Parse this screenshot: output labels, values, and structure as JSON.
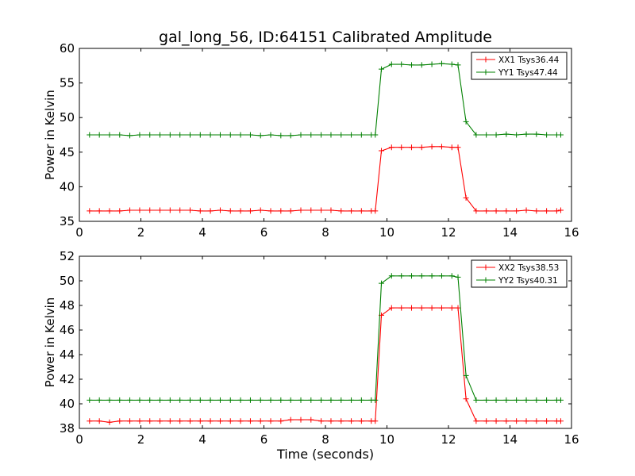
{
  "title": "gal_long_56, ID:64151 Calibrated Amplitude",
  "xlabel": "Time (seconds)",
  "colors": {
    "xx": "#ff0000",
    "yy": "#008000"
  },
  "chart_data": [
    {
      "type": "line",
      "title": "gal_long_56, ID:64151 Calibrated Amplitude",
      "xlabel": "",
      "ylabel": "Power in Kelvin",
      "xlim": [
        0,
        16
      ],
      "ylim": [
        35,
        60
      ],
      "xticks": [
        "0",
        "2",
        "4",
        "6",
        "8",
        "10",
        "12",
        "14",
        "16"
      ],
      "yticks": [
        "35",
        "40",
        "45",
        "50",
        "55",
        "60"
      ],
      "grid": false,
      "legend_position": "top-right",
      "x": [
        0.33,
        0.65,
        0.98,
        1.31,
        1.64,
        1.96,
        2.29,
        2.62,
        2.95,
        3.27,
        3.6,
        3.93,
        4.26,
        4.58,
        4.91,
        5.24,
        5.56,
        5.89,
        6.22,
        6.55,
        6.87,
        7.2,
        7.53,
        7.86,
        8.18,
        8.51,
        8.84,
        9.17,
        9.49,
        9.62,
        9.82,
        10.15,
        10.47,
        10.8,
        11.13,
        11.46,
        11.78,
        12.11,
        12.31,
        12.57,
        12.9,
        13.23,
        13.55,
        13.88,
        14.21,
        14.53,
        14.86,
        15.19,
        15.52,
        15.65
      ],
      "series": [
        {
          "name": "XX1 Tsys36.44",
          "color": "#ff0000",
          "values": [
            36.5,
            36.5,
            36.5,
            36.5,
            36.6,
            36.6,
            36.6,
            36.6,
            36.6,
            36.6,
            36.6,
            36.5,
            36.5,
            36.6,
            36.5,
            36.5,
            36.5,
            36.6,
            36.5,
            36.5,
            36.5,
            36.6,
            36.6,
            36.6,
            36.6,
            36.5,
            36.5,
            36.5,
            36.5,
            36.5,
            45.2,
            45.7,
            45.7,
            45.7,
            45.7,
            45.8,
            45.8,
            45.7,
            45.7,
            38.4,
            36.5,
            36.5,
            36.5,
            36.5,
            36.5,
            36.6,
            36.5,
            36.5,
            36.5,
            36.6
          ]
        },
        {
          "name": "YY1 Tsys47.44",
          "color": "#008000",
          "values": [
            47.5,
            47.5,
            47.5,
            47.5,
            47.4,
            47.5,
            47.5,
            47.5,
            47.5,
            47.5,
            47.5,
            47.5,
            47.5,
            47.5,
            47.5,
            47.5,
            47.5,
            47.4,
            47.5,
            47.4,
            47.4,
            47.5,
            47.5,
            47.5,
            47.5,
            47.5,
            47.5,
            47.5,
            47.5,
            47.5,
            57.0,
            57.7,
            57.7,
            57.6,
            57.6,
            57.7,
            57.8,
            57.7,
            57.6,
            49.4,
            47.5,
            47.5,
            47.5,
            47.6,
            47.5,
            47.6,
            47.6,
            47.5,
            47.5,
            47.5
          ]
        }
      ]
    },
    {
      "type": "line",
      "title": "",
      "xlabel": "Time (seconds)",
      "ylabel": "Power in Kelvin",
      "xlim": [
        0,
        16
      ],
      "ylim": [
        38,
        52
      ],
      "xticks": [
        "0",
        "2",
        "4",
        "6",
        "8",
        "10",
        "12",
        "14",
        "16"
      ],
      "yticks": [
        "38",
        "40",
        "42",
        "44",
        "46",
        "48",
        "50",
        "52"
      ],
      "grid": false,
      "legend_position": "top-right",
      "x": [
        0.33,
        0.65,
        0.98,
        1.31,
        1.64,
        1.96,
        2.29,
        2.62,
        2.95,
        3.27,
        3.6,
        3.93,
        4.26,
        4.58,
        4.91,
        5.24,
        5.56,
        5.89,
        6.22,
        6.55,
        6.87,
        7.2,
        7.53,
        7.86,
        8.18,
        8.51,
        8.84,
        9.17,
        9.49,
        9.62,
        9.82,
        10.15,
        10.47,
        10.8,
        11.13,
        11.46,
        11.78,
        12.11,
        12.31,
        12.57,
        12.9,
        13.23,
        13.55,
        13.88,
        14.21,
        14.53,
        14.86,
        15.19,
        15.52,
        15.65
      ],
      "series": [
        {
          "name": "XX2 Tsys38.53",
          "color": "#ff0000",
          "values": [
            38.6,
            38.6,
            38.5,
            38.6,
            38.6,
            38.6,
            38.6,
            38.6,
            38.6,
            38.6,
            38.6,
            38.6,
            38.6,
            38.6,
            38.6,
            38.6,
            38.6,
            38.6,
            38.6,
            38.6,
            38.7,
            38.7,
            38.7,
            38.6,
            38.6,
            38.6,
            38.6,
            38.6,
            38.6,
            38.6,
            47.2,
            47.8,
            47.8,
            47.8,
            47.8,
            47.8,
            47.8,
            47.8,
            47.8,
            40.4,
            38.6,
            38.6,
            38.6,
            38.6,
            38.6,
            38.6,
            38.6,
            38.6,
            38.6,
            38.6
          ]
        },
        {
          "name": "YY2 Tsys40.31",
          "color": "#008000",
          "values": [
            40.3,
            40.3,
            40.3,
            40.3,
            40.3,
            40.3,
            40.3,
            40.3,
            40.3,
            40.3,
            40.3,
            40.3,
            40.3,
            40.3,
            40.3,
            40.3,
            40.3,
            40.3,
            40.3,
            40.3,
            40.3,
            40.3,
            40.3,
            40.3,
            40.3,
            40.3,
            40.3,
            40.3,
            40.3,
            40.3,
            49.8,
            50.4,
            50.4,
            50.4,
            50.4,
            50.4,
            50.4,
            50.4,
            50.3,
            42.3,
            40.3,
            40.3,
            40.3,
            40.3,
            40.3,
            40.3,
            40.3,
            40.3,
            40.3,
            40.3
          ]
        }
      ]
    }
  ]
}
